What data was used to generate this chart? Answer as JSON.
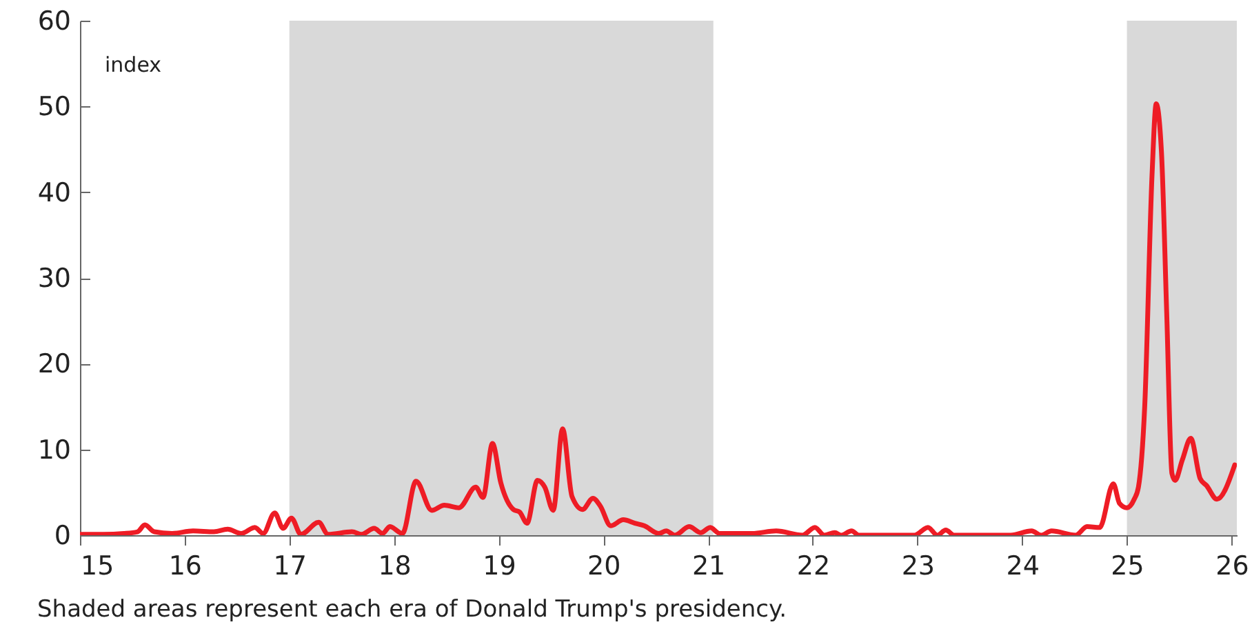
{
  "chart_data": {
    "type": "line",
    "x": [
      15.0,
      15.22,
      15.42,
      15.55,
      15.62,
      15.71,
      15.88,
      16.08,
      16.28,
      16.41,
      16.54,
      16.67,
      16.75,
      16.86,
      16.94,
      17.02,
      17.11,
      17.28,
      17.37,
      17.6,
      17.69,
      17.81,
      17.89,
      17.96,
      18.08,
      18.21,
      18.36,
      18.48,
      18.62,
      18.78,
      18.85,
      18.94,
      19.02,
      19.14,
      19.2,
      19.27,
      19.37,
      19.44,
      19.52,
      19.61,
      19.7,
      19.8,
      19.9,
      19.97,
      20.07,
      20.19,
      20.3,
      20.39,
      20.53,
      20.6,
      20.68,
      20.82,
      20.93,
      21.02,
      21.11,
      21.42,
      21.65,
      21.9,
      22.02,
      22.11,
      22.21,
      22.27,
      22.37,
      22.44,
      22.97,
      23.1,
      23.19,
      23.27,
      23.35,
      23.89,
      24.09,
      24.18,
      24.28,
      24.51,
      24.62,
      24.74,
      24.87,
      24.93,
      25.0,
      25.07,
      25.11,
      25.17,
      25.24,
      25.28,
      25.33,
      25.38,
      25.43,
      25.46,
      25.53,
      25.61,
      25.7,
      25.76,
      25.86,
      26.03
    ],
    "series": [
      {
        "color": "#ee1c25",
        "values": [
          0.1,
          0.1,
          0.2,
          0.4,
          1.2,
          0.4,
          0.2,
          0.5,
          0.4,
          0.7,
          0.2,
          0.9,
          0.2,
          2.6,
          0.8,
          2.0,
          0.1,
          1.5,
          0.1,
          0.4,
          0.1,
          0.8,
          0.2,
          1.0,
          0.2,
          6.3,
          2.9,
          3.5,
          3.2,
          5.6,
          4.4,
          10.7,
          6.1,
          3.0,
          2.7,
          1.4,
          6.4,
          5.6,
          2.9,
          12.4,
          4.5,
          3.0,
          4.3,
          3.4,
          1.1,
          1.8,
          1.4,
          1.1,
          0.2,
          0.5,
          0,
          1.0,
          0.3,
          0.9,
          0.2,
          0.2,
          0.5,
          0,
          0.9,
          0,
          0.3,
          0,
          0.5,
          0,
          0,
          0.9,
          0,
          0.6,
          0,
          0,
          0.5,
          0,
          0.5,
          0,
          1.0,
          0.9,
          6.0,
          3.7,
          3.2,
          4.2,
          5.6,
          15,
          42,
          50.3,
          44.7,
          26,
          7.2,
          6.4,
          8.8,
          11.3,
          6.6,
          5.8,
          4.2,
          8.2
        ]
      }
    ],
    "xlim": [
      15,
      26.05
    ],
    "xticks": [
      15,
      16,
      17,
      18,
      19,
      20,
      21,
      22,
      23,
      24,
      25,
      26
    ],
    "ylim": [
      0,
      60
    ],
    "yticks": [
      0,
      10,
      20,
      30,
      40,
      50,
      60
    ],
    "grid": false,
    "bands": [
      {
        "axis": "x",
        "from": 17,
        "to": 21.05,
        "color": "#d9d9d9"
      },
      {
        "axis": "x",
        "from": 25,
        "to": 26.05,
        "color": "#d9d9d9"
      }
    ],
    "annotations": [
      "index",
      "Shaded areas represent each era of Donald Trump's presidency."
    ]
  }
}
